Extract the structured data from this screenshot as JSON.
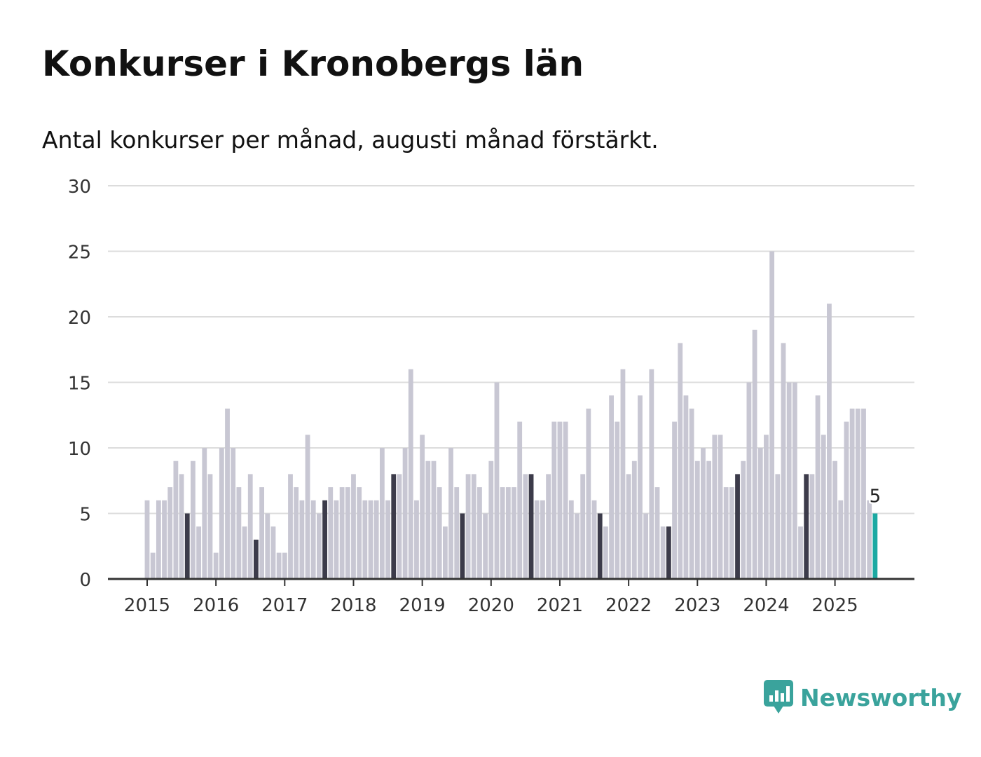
{
  "header": {
    "title": "Konkurser i Kronobergs län",
    "subtitle": "Antal konkurser per månad, augusti månad förstärkt."
  },
  "branding": {
    "name": "Newsworthy",
    "icon": "bar-chart-speech-bubble-icon",
    "color": "#3aa39c"
  },
  "colors": {
    "regular_bar": "#c8c7d3",
    "highlight_bar": "#3c3b4a",
    "latest_bar": "#1ba9a2",
    "grid": "#dcdcdc",
    "axis": "#333333"
  },
  "chart_data": {
    "type": "bar",
    "start": "2015-01",
    "highlight_month": "August",
    "latest_label": "5",
    "x_ticks": [
      "2015",
      "2016",
      "2017",
      "2018",
      "2019",
      "2020",
      "2021",
      "2022",
      "2023",
      "2024",
      "2025"
    ],
    "y_ticks": [
      "0",
      "5",
      "10",
      "15",
      "20",
      "25",
      "30"
    ],
    "ylim": [
      0,
      30
    ],
    "grid": true,
    "values": [
      6,
      2,
      6,
      6,
      7,
      9,
      8,
      5,
      9,
      4,
      10,
      8,
      2,
      10,
      13,
      10,
      7,
      4,
      8,
      3,
      7,
      5,
      4,
      2,
      2,
      8,
      7,
      6,
      11,
      6,
      5,
      6,
      7,
      6,
      7,
      7,
      8,
      7,
      6,
      6,
      6,
      10,
      6,
      8,
      8,
      10,
      16,
      6,
      11,
      9,
      9,
      7,
      4,
      10,
      7,
      5,
      8,
      8,
      7,
      5,
      9,
      15,
      7,
      7,
      7,
      12,
      8,
      8,
      6,
      6,
      8,
      12,
      12,
      12,
      6,
      5,
      8,
      13,
      6,
      5,
      4,
      14,
      12,
      16,
      8,
      9,
      14,
      5,
      16,
      7,
      4,
      4,
      12,
      18,
      14,
      13,
      9,
      10,
      9,
      11,
      11,
      7,
      7,
      8,
      9,
      15,
      19,
      10,
      11,
      25,
      8,
      18,
      15,
      15,
      4,
      8,
      8,
      14,
      11,
      21,
      9,
      6,
      12,
      13,
      13,
      13,
      6,
      5
    ]
  }
}
